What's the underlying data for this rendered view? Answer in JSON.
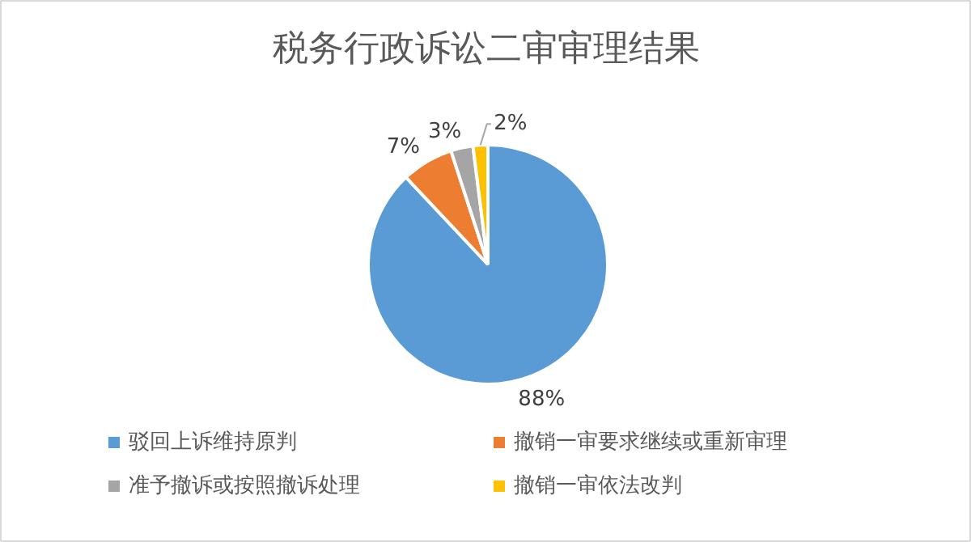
{
  "chart_data": {
    "type": "pie",
    "title": "税务行政诉讼二审审理结果",
    "categories": [
      "驳回上诉维持原判",
      "撤销一审要求继续或重新审理",
      "准予撤诉或按照撤诉处理",
      "撤销一审依法改判"
    ],
    "values": [
      88,
      7,
      3,
      2
    ],
    "colors": [
      "#5b9bd5",
      "#ed7d31",
      "#a5a5a5",
      "#ffc000"
    ],
    "value_labels": [
      "88%",
      "7%",
      "3%",
      "2%"
    ],
    "legend": "bottom"
  }
}
